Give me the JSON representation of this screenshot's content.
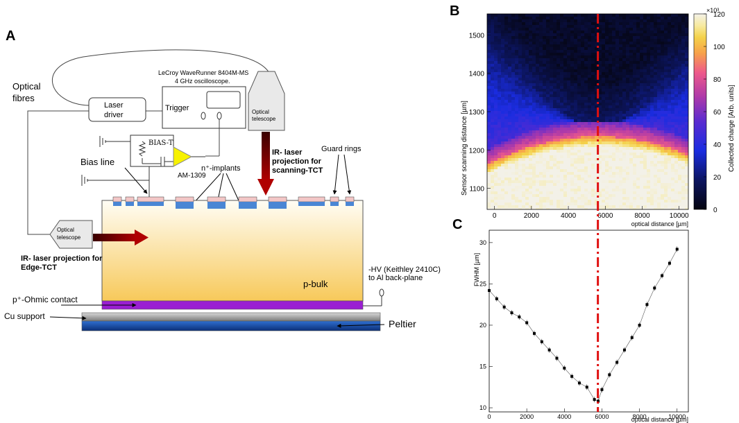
{
  "panel_a": {
    "letter": "A",
    "oscilloscope": {
      "line1": "LeCroy WaveRunner 8404M-MS",
      "line2": "4 GHz oscilloscope.",
      "trigger": "Trigger"
    },
    "optical_fibres": {
      "line1": "Optical",
      "line2": "fibres"
    },
    "laser_driver": {
      "line1": "Laser",
      "line2": "driver"
    },
    "bias_t": "BIAS-T",
    "amplifier": "AM-1309",
    "bias_line": "Bias line",
    "n_implants": "n⁺-implants",
    "guard_rings": "Guard rings",
    "telescope_top": {
      "line1": "Optical",
      "line2": "telescope"
    },
    "telescope_left": {
      "line1": "Optical",
      "line2": "telescope"
    },
    "ir_scanning": {
      "line1": "IR- laser",
      "line2": "projection for",
      "line3": "scanning-TCT"
    },
    "ir_edge": {
      "line1": "IR- laser projection for",
      "line2": "Edge-TCT"
    },
    "hv": {
      "line1": "-HV (Keithley 2410C)",
      "line2": "to Al back-plane"
    },
    "p_bulk": "p-bulk",
    "ohmic": "p⁺-Ohmic contact",
    "cu_support": "Cu support",
    "peltier": "Peltier"
  },
  "panel_b": {
    "letter": "B",
    "colors": {
      "low": "#0a0a2a",
      "mid": "#1e2bd8",
      "high": "#e0508a",
      "top": "#f2efe6"
    }
  },
  "panel_c": {
    "letter": "C"
  },
  "chart_data": [
    {
      "type": "heatmap",
      "title": "",
      "xlabel": "optical distance [µm]",
      "ylabel": "Sensor scanning distance [µm]",
      "x_ticks": [
        0,
        2000,
        4000,
        6000,
        8000,
        10000
      ],
      "y_ticks": [
        1100,
        1200,
        1300,
        1400,
        1500
      ],
      "xlim": [
        -400,
        10500
      ],
      "ylim": [
        1045,
        1555
      ],
      "colorbar": {
        "label": "Collected charge [Arb. units]",
        "ticks": [
          0,
          20,
          40,
          60,
          80,
          100,
          120
        ],
        "exponent": "×10³",
        "range": [
          0,
          120
        ]
      },
      "marker_line_x": 5600
    },
    {
      "type": "scatter",
      "title": "",
      "xlabel": "optical distance [µm]",
      "ylabel": "FWHM [µm]",
      "x_ticks": [
        0,
        2000,
        4000,
        6000,
        8000,
        10000
      ],
      "y_ticks": [
        10,
        15,
        20,
        25,
        30
      ],
      "xlim": [
        0,
        10600
      ],
      "ylim": [
        9.5,
        31.5
      ],
      "marker_line_x": 5600,
      "series": [
        {
          "name": "FWHM",
          "x": [
            0,
            400,
            800,
            1200,
            1600,
            2000,
            2400,
            2800,
            3200,
            3600,
            4000,
            4400,
            4800,
            5200,
            5600,
            5800,
            6000,
            6400,
            6800,
            7200,
            7600,
            8000,
            8400,
            8800,
            9200,
            9600,
            10000
          ],
          "y": [
            24.2,
            23.2,
            22.2,
            21.5,
            21.0,
            20.3,
            19.0,
            18.0,
            17.0,
            16.0,
            14.8,
            13.8,
            13.0,
            12.5,
            11.0,
            10.8,
            12.2,
            14.0,
            15.5,
            17.0,
            18.5,
            20.0,
            22.5,
            24.5,
            26.0,
            27.5,
            29.2
          ]
        }
      ]
    }
  ]
}
